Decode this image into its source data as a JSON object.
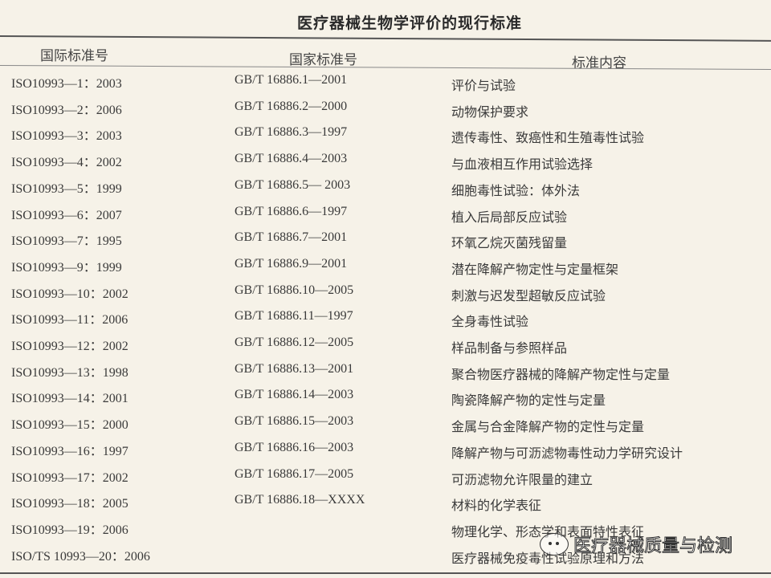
{
  "title": "医疗器械生物学评价的现行标准",
  "headers": [
    "国际标准号",
    "国家标准号",
    "标准内容"
  ],
  "rows": [
    [
      "ISO10993—1：2003",
      "GB/T 16886.1—2001",
      "评价与试验"
    ],
    [
      "ISO10993—2：2006",
      "GB/T 16886.2—2000",
      "动物保护要求"
    ],
    [
      "ISO10993—3：2003",
      "GB/T 16886.3—1997",
      "遗传毒性、致癌性和生殖毒性试验"
    ],
    [
      "ISO10993—4：2002",
      "GB/T 16886.4—2003",
      "与血液相互作用试验选择"
    ],
    [
      "ISO10993—5：1999",
      "GB/T 16886.5— 2003",
      "细胞毒性试验：体外法"
    ],
    [
      "ISO10993—6：2007",
      "GB/T 16886.6—1997",
      "植入后局部反应试验"
    ],
    [
      "ISO10993—7：1995",
      "GB/T 16886.7—2001",
      "环氧乙烷灭菌残留量"
    ],
    [
      "ISO10993—9：1999",
      "GB/T 16886.9—2001",
      "潜在降解产物定性与定量框架"
    ],
    [
      "ISO10993—10：2002",
      "GB/T 16886.10—2005",
      "刺激与迟发型超敏反应试验"
    ],
    [
      "ISO10993—11：2006",
      "GB/T 16886.11—1997",
      "全身毒性试验"
    ],
    [
      "ISO10993—12：2002",
      "GB/T 16886.12—2005",
      "样品制备与参照样品"
    ],
    [
      "ISO10993—13：1998",
      "GB/T 16886.13—2001",
      "聚合物医疗器械的降解产物定性与定量"
    ],
    [
      "ISO10993—14：2001",
      "GB/T 16886.14—2003",
      "陶瓷降解产物的定性与定量"
    ],
    [
      "ISO10993—15：2000",
      "GB/T 16886.15—2003",
      "金属与合金降解产物的定性与定量"
    ],
    [
      "ISO10993—16：1997",
      "GB/T 16886.16—2003",
      "降解产物与可沥滤物毒性动力学研究设计"
    ],
    [
      "ISO10993—17：2002",
      "GB/T 16886.17—2005",
      "可沥滤物允许限量的建立"
    ],
    [
      "ISO10993—18：2005",
      "GB/T 16886.18—XXXX",
      "材料的化学表征"
    ],
    [
      "ISO10993—19：2006",
      "",
      "物理化学、形态学和表面特性表征"
    ],
    [
      "ISO/TS 10993—20：2006",
      "",
      "医疗器械免疫毒性试验原理和方法"
    ]
  ],
  "watermark": {
    "text": "医疗器械质量与检测",
    "icon": "wechat-icon"
  }
}
